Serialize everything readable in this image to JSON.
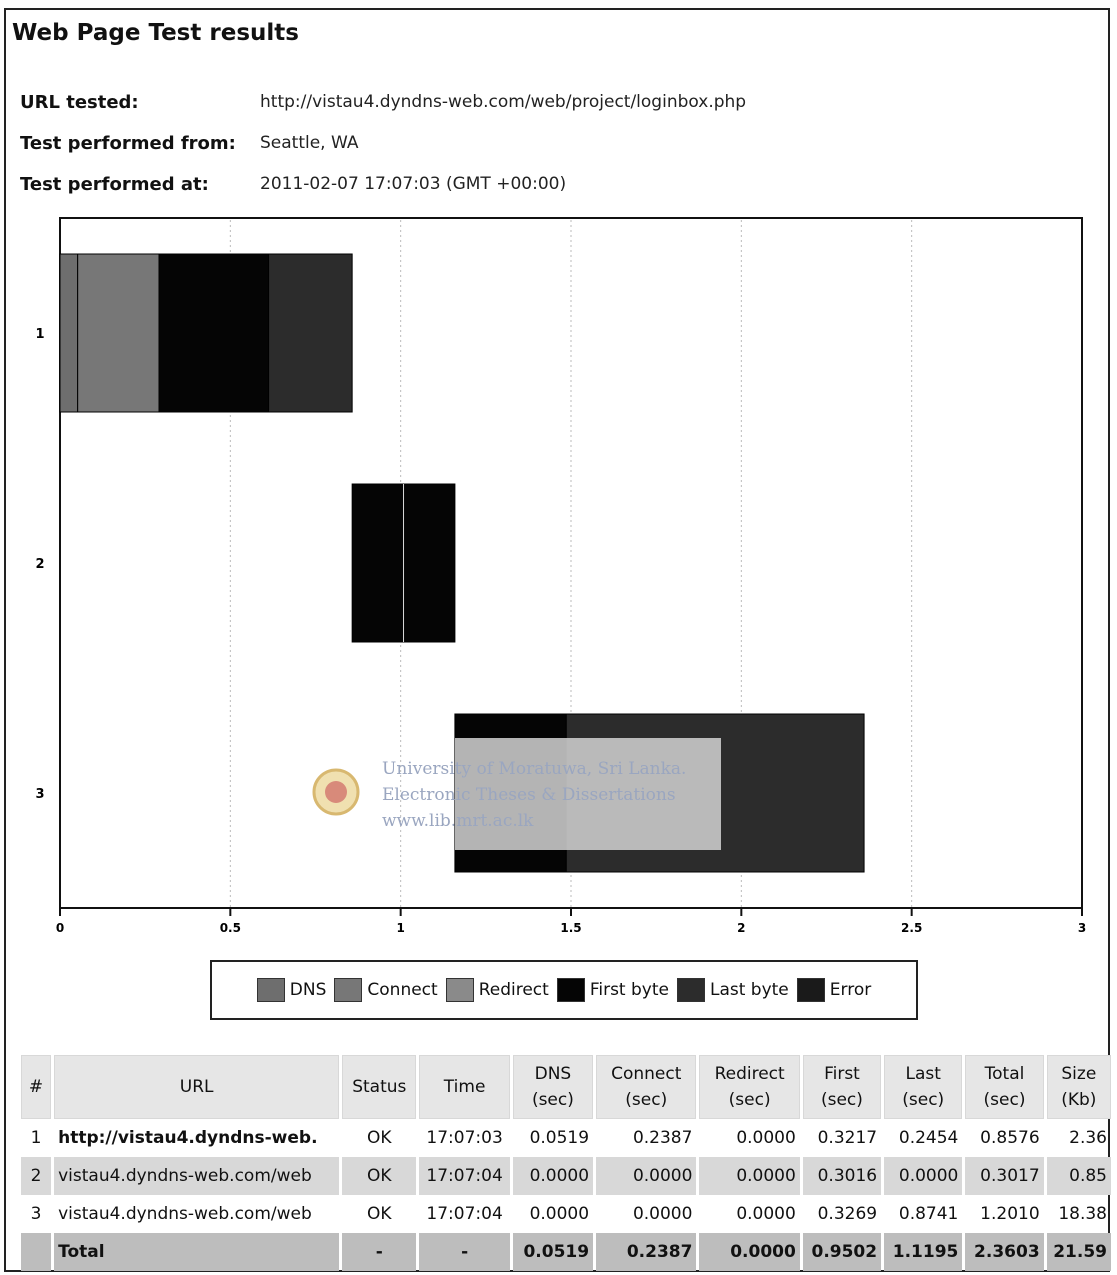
{
  "page": {
    "title": "Web Page Test results",
    "info": [
      {
        "label": "URL tested:",
        "value": "http://vistau4.dyndns-web.com/web/project/loginbox.php"
      },
      {
        "label": "Test performed from:",
        "value": "Seattle, WA"
      },
      {
        "label": "Test performed at:",
        "value": "2011-02-07 17:07:03 (GMT +00:00)"
      }
    ]
  },
  "chart_data": {
    "type": "bar",
    "orientation": "horizontal-waterfall",
    "x_ticks": [
      "0",
      "0.5",
      "1",
      "1.5",
      "2",
      "2.5",
      "3"
    ],
    "xlim": [
      0,
      3
    ],
    "categories": [
      "1",
      "2",
      "3"
    ],
    "grid": true,
    "phases": [
      {
        "name": "DNS",
        "color": "#6e6e6e"
      },
      {
        "name": "Connect",
        "color": "#777777"
      },
      {
        "name": "Redirect",
        "color": "#8a8a8a"
      },
      {
        "name": "First byte",
        "color": "#050505"
      },
      {
        "name": "Last byte",
        "color": "#2c2c2c"
      },
      {
        "name": "Error",
        "color": "#1a1a1a"
      }
    ],
    "segments": [
      {
        "row": "1",
        "phase": "DNS",
        "start": 0.0,
        "end": 0.0519
      },
      {
        "row": "1",
        "phase": "Connect",
        "start": 0.0519,
        "end": 0.2906
      },
      {
        "row": "1",
        "phase": "First byte",
        "start": 0.2906,
        "end": 0.6123
      },
      {
        "row": "1",
        "phase": "Last byte",
        "start": 0.6123,
        "end": 0.8576
      },
      {
        "row": "2",
        "phase": "First byte",
        "start": 0.8576,
        "end": 1.1592
      },
      {
        "row": "3",
        "phase": "First byte",
        "start": 1.1592,
        "end": 1.4861
      },
      {
        "row": "3",
        "phase": "Last byte",
        "start": 1.4861,
        "end": 2.3603
      }
    ],
    "watermark": [
      "University of Moratuwa, Sri Lanka.",
      "Electronic Theses & Dissertations",
      "www.lib.mrt.ac.lk"
    ]
  },
  "table": {
    "headers": [
      "#",
      "URL",
      "Status",
      "Time",
      "DNS (sec)",
      "Connect (sec)",
      "Redirect (sec)",
      "First (sec)",
      "Last (sec)",
      "Total (sec)",
      "Size (Kb)"
    ],
    "rows": [
      [
        "1",
        "http://vistau4.dyndns-web.",
        "OK",
        "17:07:03",
        "0.0519",
        "0.2387",
        "0.0000",
        "0.3217",
        "0.2454",
        "0.8576",
        "2.36"
      ],
      [
        "2",
        "vistau4.dyndns-web.com/web",
        "OK",
        "17:07:04",
        "0.0000",
        "0.0000",
        "0.0000",
        "0.3016",
        "0.0000",
        "0.3017",
        "0.85"
      ],
      [
        "3",
        "vistau4.dyndns-web.com/web",
        "OK",
        "17:07:04",
        "0.0000",
        "0.0000",
        "0.0000",
        "0.3269",
        "0.8741",
        "1.2010",
        "18.38"
      ]
    ],
    "total": [
      "",
      "Total",
      "-",
      "-",
      "0.0519",
      "0.2387",
      "0.0000",
      "0.9502",
      "1.1195",
      "2.3603",
      "21.59"
    ]
  }
}
